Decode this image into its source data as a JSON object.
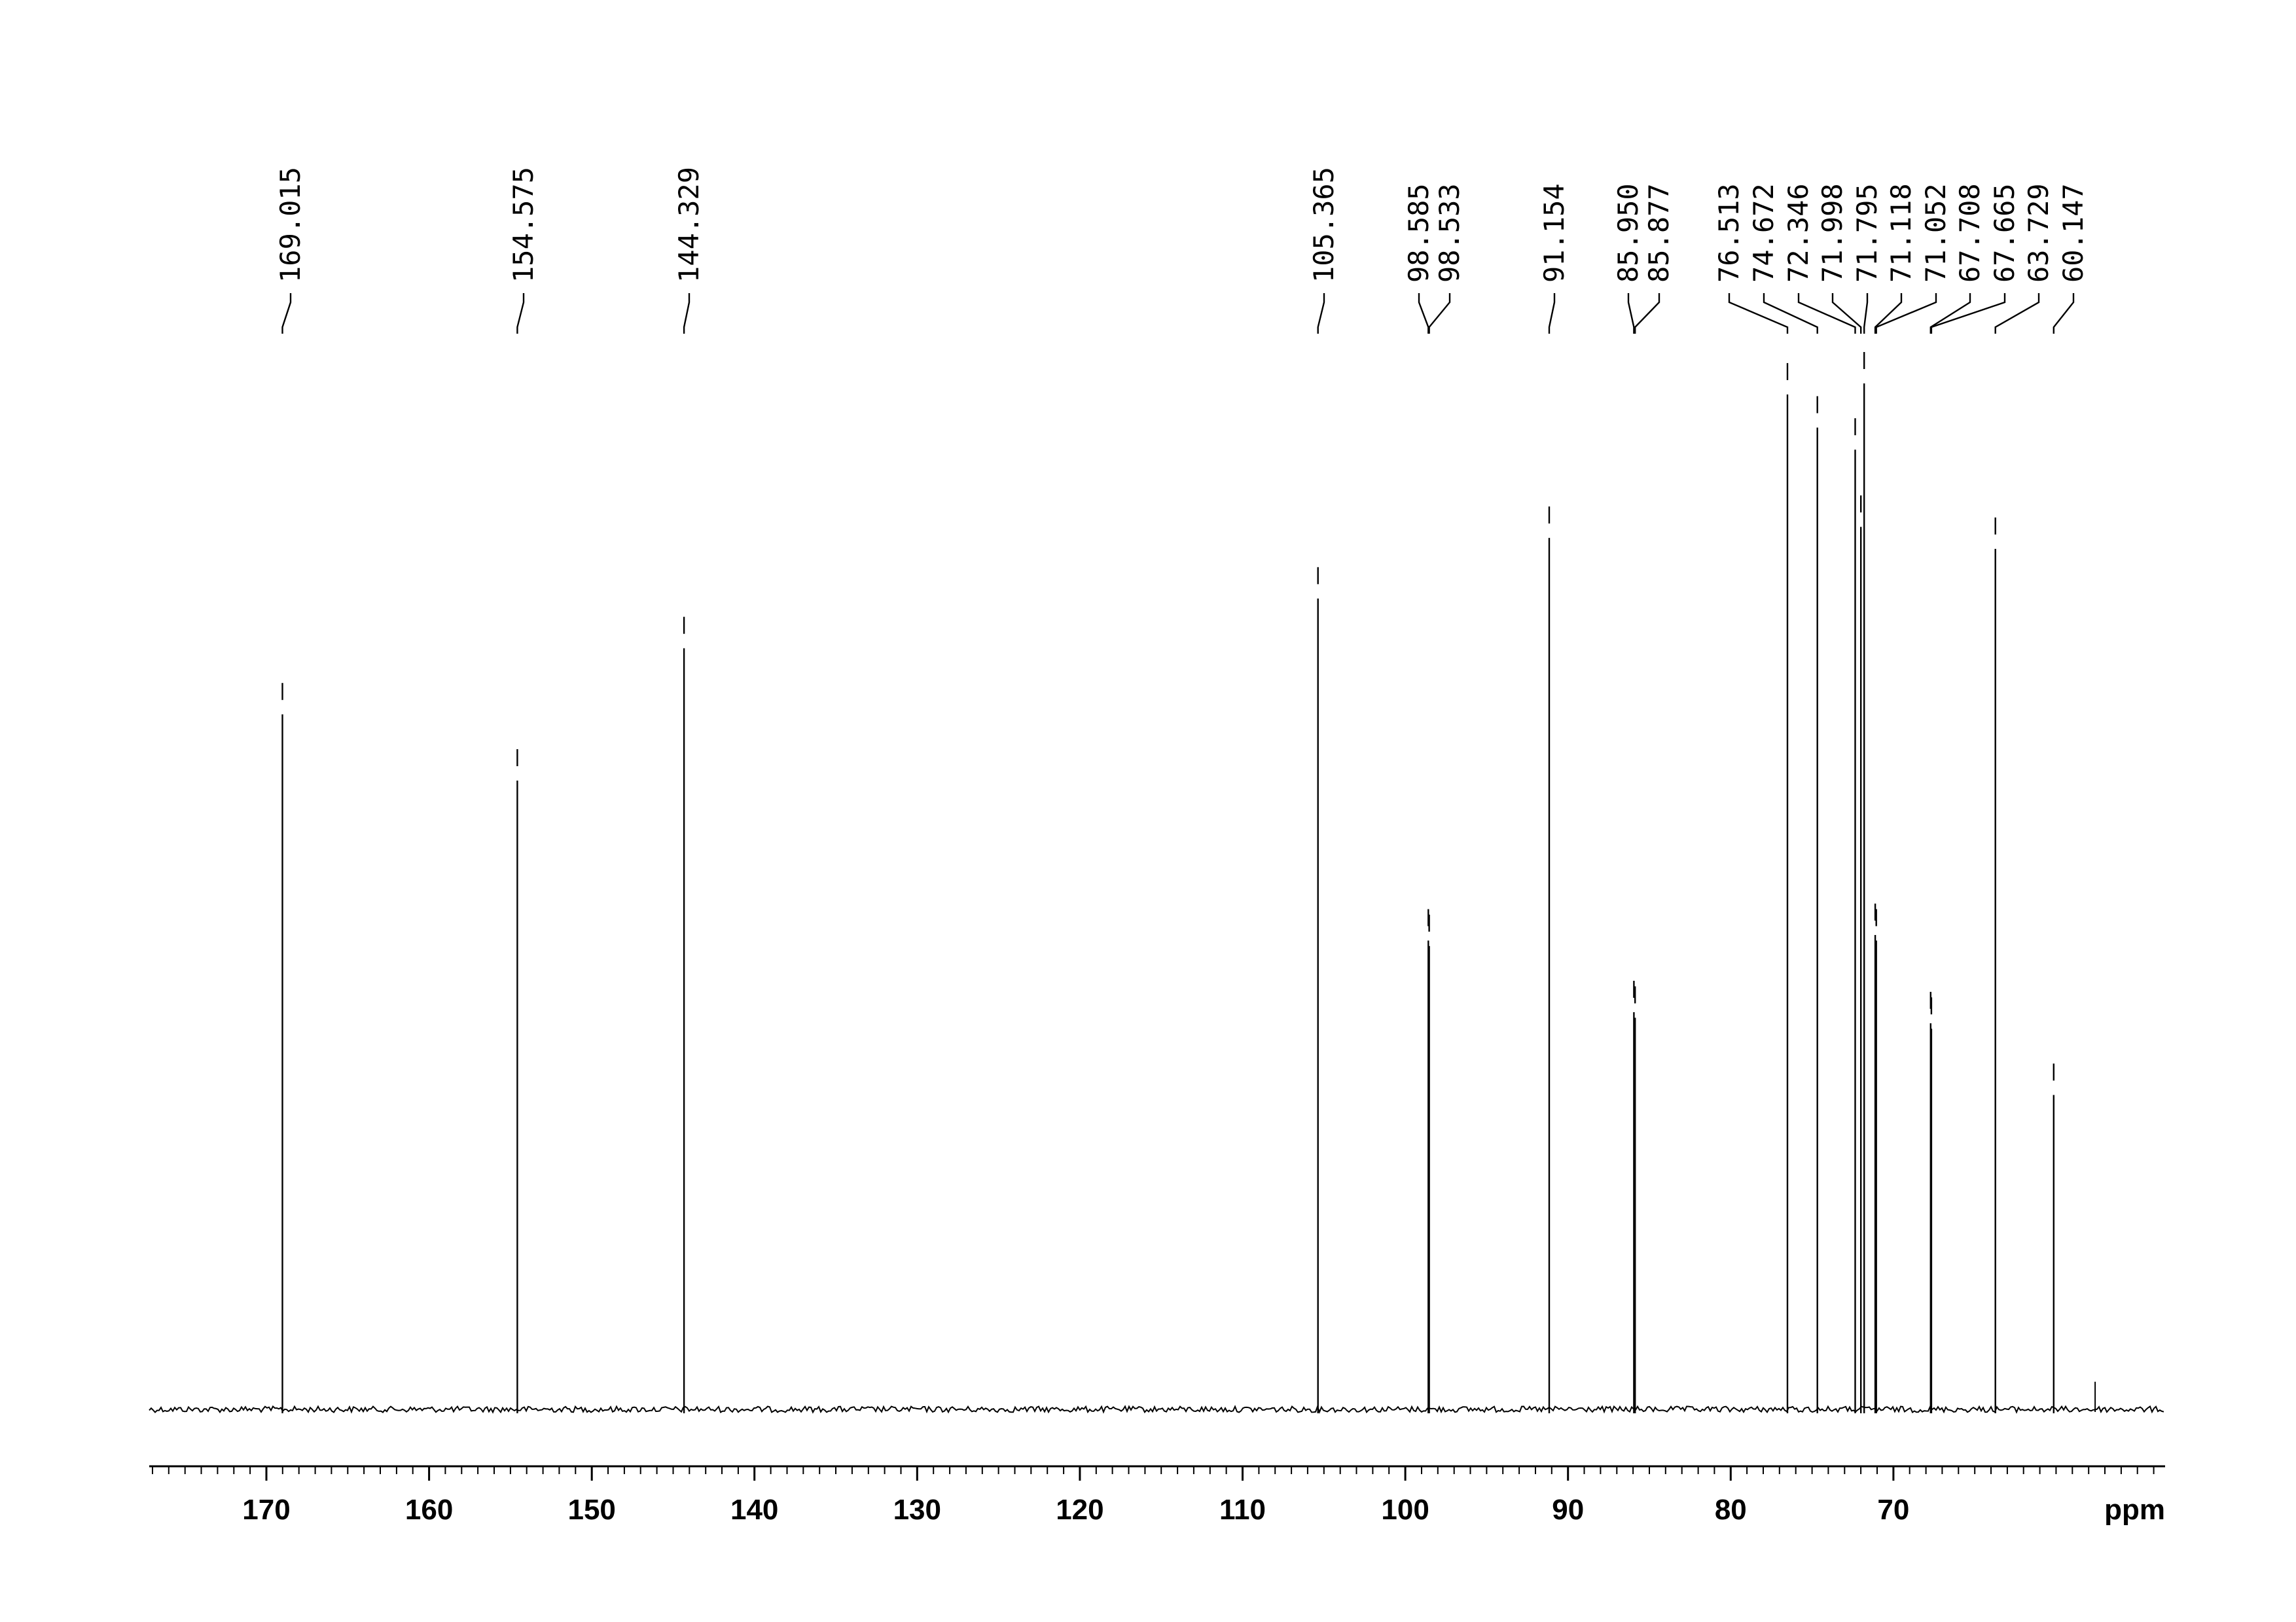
{
  "chart_data": {
    "type": "line",
    "title": "",
    "xlabel": "ppm",
    "ylabel": "",
    "x_reversed": true,
    "xlim": [
      177.2,
      53.3
    ],
    "ylim": [
      0,
      100
    ],
    "grid": false,
    "legend": "none",
    "x_ticks": [
      170,
      160,
      150,
      140,
      130,
      120,
      110,
      100,
      90,
      80,
      70
    ],
    "x_tick_labels": [
      "170",
      "160",
      "150",
      "140",
      "130",
      "120",
      "110",
      "100",
      "90",
      "80",
      "70"
    ],
    "minor_tick_step": 1,
    "peak_labels": [
      "169.015",
      "154.575",
      "144.329",
      "105.365",
      "98.585",
      "98.533",
      "91.154",
      "85.950",
      "85.877",
      "76.513",
      "74.672",
      "72.346",
      "71.998",
      "71.795",
      "71.118",
      "71.052",
      "67.708",
      "67.665",
      "63.729",
      "60.147"
    ],
    "peaks": [
      {
        "ppm": 169.015,
        "intensity": 63.0
      },
      {
        "ppm": 154.575,
        "intensity": 57.0
      },
      {
        "ppm": 144.329,
        "intensity": 69.0
      },
      {
        "ppm": 105.365,
        "intensity": 73.5
      },
      {
        "ppm": 98.585,
        "intensity": 42.5
      },
      {
        "ppm": 98.533,
        "intensity": 42.0
      },
      {
        "ppm": 91.154,
        "intensity": 79.0
      },
      {
        "ppm": 85.95,
        "intensity": 36.0
      },
      {
        "ppm": 85.877,
        "intensity": 35.5
      },
      {
        "ppm": 76.513,
        "intensity": 92.0
      },
      {
        "ppm": 74.672,
        "intensity": 89.0
      },
      {
        "ppm": 72.346,
        "intensity": 87.0
      },
      {
        "ppm": 71.998,
        "intensity": 80.0
      },
      {
        "ppm": 71.795,
        "intensity": 93.0
      },
      {
        "ppm": 71.118,
        "intensity": 43.0
      },
      {
        "ppm": 71.052,
        "intensity": 42.5
      },
      {
        "ppm": 67.708,
        "intensity": 35.0
      },
      {
        "ppm": 67.665,
        "intensity": 34.5
      },
      {
        "ppm": 63.729,
        "intensity": 78.0
      },
      {
        "ppm": 60.147,
        "intensity": 28.5
      }
    ],
    "small_peaks": [
      {
        "ppm": 57.6,
        "intensity": 2.5
      }
    ]
  }
}
